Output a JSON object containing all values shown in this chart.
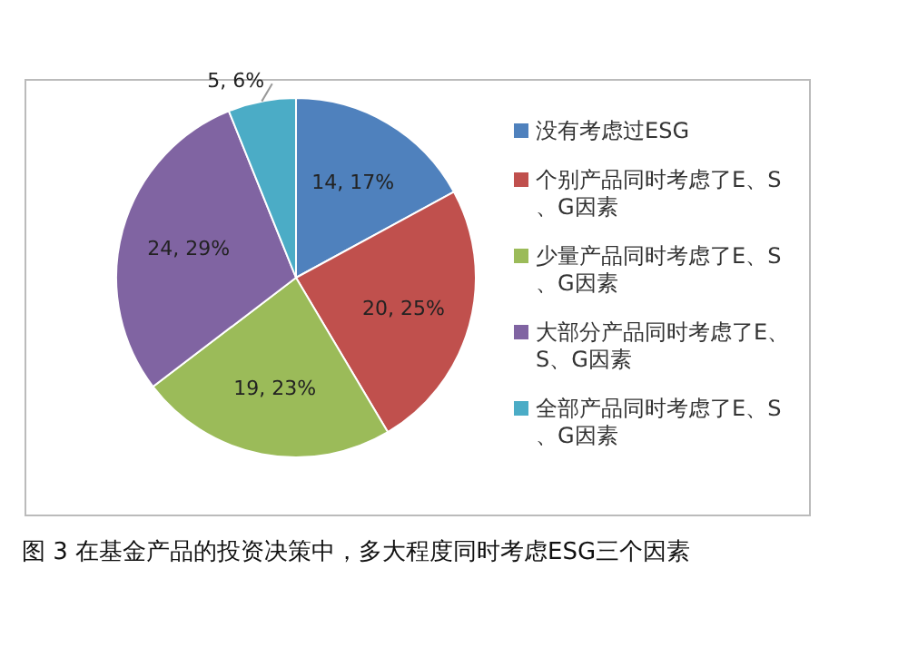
{
  "chart_data": {
    "type": "pie",
    "categories": [
      "没有考虑过ESG",
      "个别产品同时考虑了E、S、G因素",
      "少量产品同时考虑了E、S、G因素",
      "大部分产品同时考虑了E、S、G因素",
      "全部产品同时考虑了E、S、G因素"
    ],
    "values": [
      14,
      20,
      19,
      24,
      5
    ],
    "colors": [
      "#4f81bd",
      "#c0504d",
      "#9bbb59",
      "#8064a2",
      "#4bacc6"
    ],
    "value_labels": [
      "14, 17%",
      "20, 25%",
      "19, 23%",
      "24, 29%",
      "5, 6%"
    ],
    "legend": "right",
    "annotations": [
      "图 3 在基金产品的投资决策中，多大程度同时考虑ESG三个因素"
    ]
  }
}
